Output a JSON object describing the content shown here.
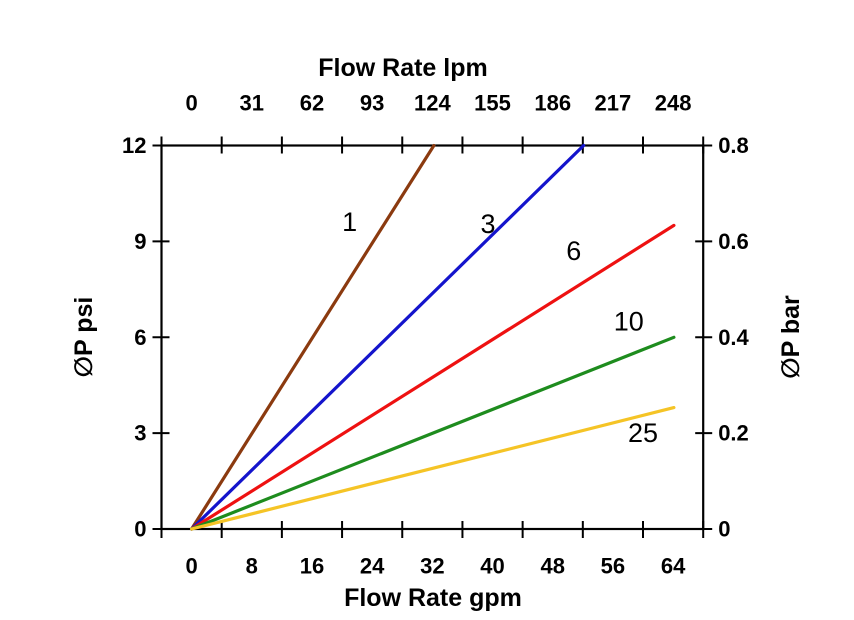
{
  "chart_data": {
    "type": "line",
    "description": "Pressure drop versus flow rate curves",
    "background": "#FFFFFF",
    "axis_color": "#000000",
    "axes": {
      "top": {
        "label": "Flow Rate lpm",
        "tick_labels": [
          "0",
          "31",
          "62",
          "93",
          "124",
          "155",
          "186",
          "217",
          "248"
        ]
      },
      "bottom": {
        "label": "Flow Rate gpm",
        "tick_labels": [
          "0",
          "8",
          "16",
          "24",
          "32",
          "40",
          "48",
          "56",
          "64"
        ],
        "range_gpm": [
          0,
          72
        ]
      },
      "left": {
        "label": "∅P psi",
        "tick_labels": [
          "0",
          "3",
          "6",
          "9",
          "12"
        ],
        "range": [
          0,
          12
        ]
      },
      "right": {
        "label": "∅P bar",
        "tick_labels": [
          "0",
          "0.2",
          "0.4",
          "0.6",
          "0.8"
        ],
        "range": [
          0,
          0.8
        ]
      }
    },
    "x_unit": "gpm",
    "y_unit": "psi",
    "grid": false,
    "legend": "inline-labels",
    "series": [
      {
        "label": "1",
        "color": "#8B3A0F",
        "points": [
          [
            0,
            0
          ],
          [
            32.2,
            12.0
          ]
        ],
        "label_at": [
          21.0,
          9.6
        ]
      },
      {
        "label": "3",
        "color": "#1414CC",
        "points": [
          [
            0,
            0
          ],
          [
            52.1,
            12.0
          ]
        ],
        "label_at": [
          39.4,
          9.55
        ]
      },
      {
        "label": "6",
        "color": "#EE1111",
        "points": [
          [
            0,
            0
          ],
          [
            64.1,
            9.5
          ]
        ],
        "label_at": [
          50.8,
          8.7
        ]
      },
      {
        "label": "10",
        "color": "#1E8C1E",
        "points": [
          [
            0,
            0
          ],
          [
            64.1,
            6.0
          ]
        ],
        "label_at": [
          58.1,
          6.5
        ]
      },
      {
        "label": "25",
        "color": "#F5C426",
        "points": [
          [
            0,
            0
          ],
          [
            64.1,
            3.8
          ]
        ],
        "label_at": [
          60.0,
          3.0
        ]
      }
    ]
  }
}
